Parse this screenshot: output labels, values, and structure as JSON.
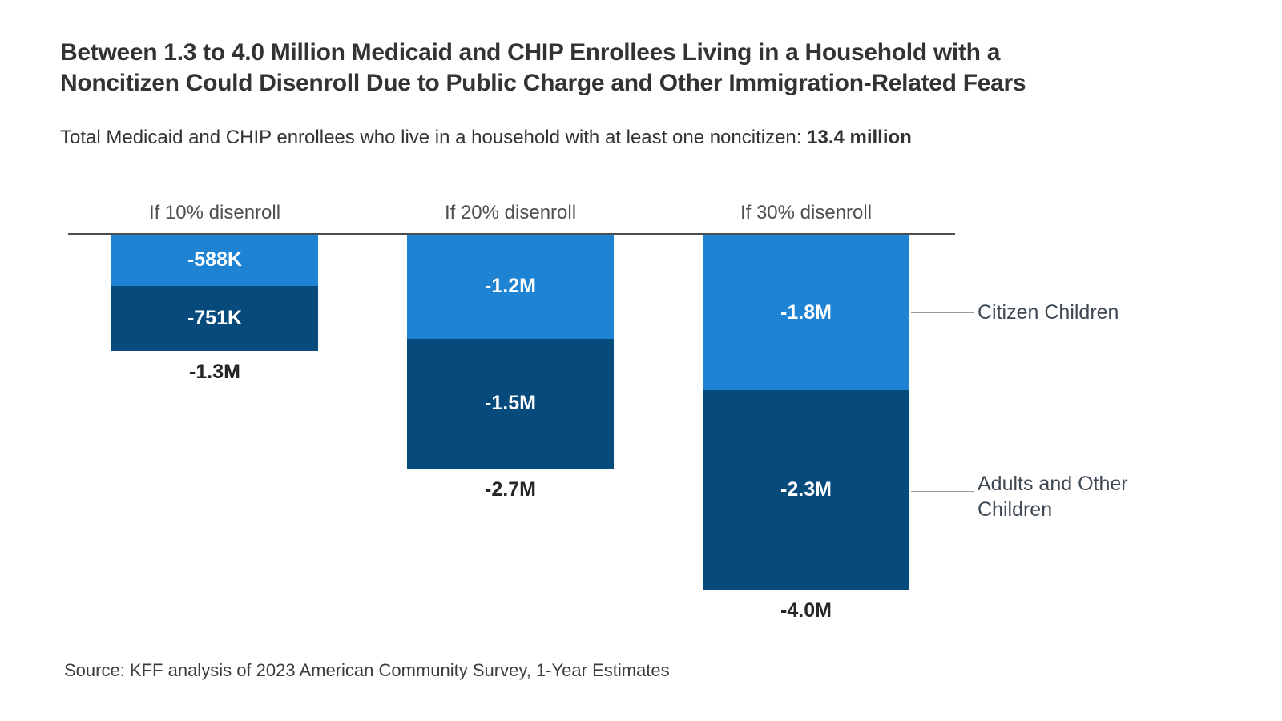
{
  "title": {
    "line1": "Between 1.3 to 4.0 Million Medicaid and CHIP Enrollees Living in a Household with a",
    "line2": "Noncitizen Could Disenroll Due to Public Charge and Other Immigration-Related Fears"
  },
  "subtitle": {
    "lead": "Total Medicaid and CHIP enrollees who live in a household with at least one noncitizen: ",
    "value": "13.4 million"
  },
  "colors": {
    "citizen_children_blue": "#1f83d4",
    "adults_other_children_navy": "#074a7c",
    "axis_line": "#4d4d4d",
    "connector_line": "#9b9b9b"
  },
  "chart_data": {
    "type": "bar",
    "subtype": "stacked-column-downward-from-zero-baseline",
    "unit": "Medicaid and CHIP enrollees (negative = disenrollment)",
    "categories": [
      "If 10% disenroll",
      "If 20% disenroll",
      "If 30% disenroll"
    ],
    "series": [
      {
        "name": "Citizen Children",
        "color": "#1f83d4",
        "values": [
          -0.588,
          -1.2,
          -1.8
        ],
        "labels": [
          "-588K",
          "-1.2M",
          "-1.8M"
        ]
      },
      {
        "name": "Adults and Other Children",
        "color": "#074a7c",
        "values": [
          -0.751,
          -1.5,
          -2.3
        ],
        "labels": [
          "-751K",
          "-1.5M",
          "-2.3M"
        ]
      }
    ],
    "totals": [
      "-1.3M",
      "-2.7M",
      "-4.0M"
    ],
    "baseline_value": 0,
    "grid": false,
    "legend_position": "right"
  },
  "legend": {
    "citizen_children": "Citizen Children",
    "adults_other_children": "Adults and Other Children"
  },
  "source": "Source: KFF analysis of 2023 American Community Survey, 1-Year Estimates"
}
